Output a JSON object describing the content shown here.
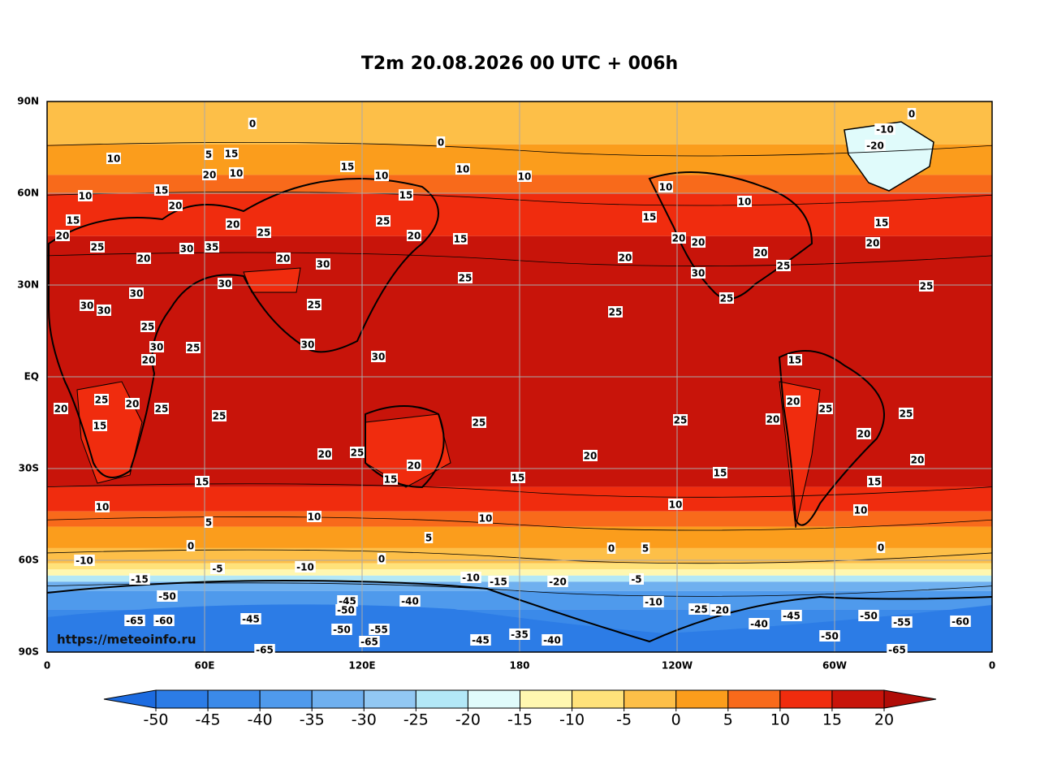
{
  "header": {
    "title": "T2m 20.08.2026 00 UTC + 006h"
  },
  "map": {
    "lat_labels": [
      "90N",
      "60N",
      "30N",
      "EQ",
      "30S",
      "60S",
      "90S"
    ],
    "lon_labels": [
      "0",
      "60E",
      "120E",
      "180",
      "120W",
      "60W",
      "0"
    ],
    "watermark": "https://meteoinfo.ru",
    "contour_labels": [
      "0",
      "0",
      "5",
      "15",
      "10",
      "20",
      "10",
      "15",
      "10",
      "10",
      "10",
      "15",
      "10",
      "15",
      "20",
      "15",
      "20",
      "25",
      "20",
      "25",
      "25",
      "20",
      "15",
      "30",
      "35",
      "20",
      "20",
      "30",
      "25",
      "20",
      "30",
      "30",
      "25",
      "30",
      "30",
      "25",
      "25",
      "30",
      "25",
      "30",
      "30",
      "20",
      "20",
      "25",
      "20",
      "25",
      "15",
      "25",
      "25",
      "25",
      "20",
      "25",
      "20",
      "20",
      "15",
      "15",
      "15",
      "15",
      "10",
      "10",
      "10",
      "10",
      "5",
      "5",
      "0",
      "0",
      "0",
      "5",
      "-10",
      "-5",
      "-10",
      "-15",
      "-20",
      "-10",
      "-15",
      "-5",
      "-50",
      "-45",
      "-50",
      "-40",
      "-45",
      "-65",
      "-60",
      "-50",
      "-55",
      "-65",
      "-45",
      "-35",
      "-40",
      "-65",
      "20",
      "25",
      "15",
      "20",
      "25",
      "10",
      "0",
      "-50",
      "-55",
      "-60",
      "-65",
      "-20",
      "-10",
      "0",
      "25",
      "30",
      "20",
      "25",
      "10",
      "10",
      "20",
      "20",
      "15",
      "20",
      "20",
      "25",
      "15",
      "20",
      "15",
      "-40",
      "-45",
      "-25",
      "-20",
      "-10",
      "-50"
    ]
  },
  "colorbar": {
    "ticks": [
      -50,
      -45,
      -40,
      -35,
      -30,
      -25,
      -20,
      -15,
      -10,
      -5,
      0,
      5,
      10,
      15,
      20
    ],
    "colors": [
      "#2c7ce6",
      "#3b8ae9",
      "#4f9aec",
      "#6fb0ef",
      "#92c8f3",
      "#b3e8f7",
      "#e0fbfb",
      "#fff7b0",
      "#ffe27a",
      "#fdbf48",
      "#fb9d1c",
      "#f86a1b",
      "#f02c0e",
      "#c8140a"
    ],
    "under_color": "#1c6be0",
    "over_color": "#b00c07"
  }
}
